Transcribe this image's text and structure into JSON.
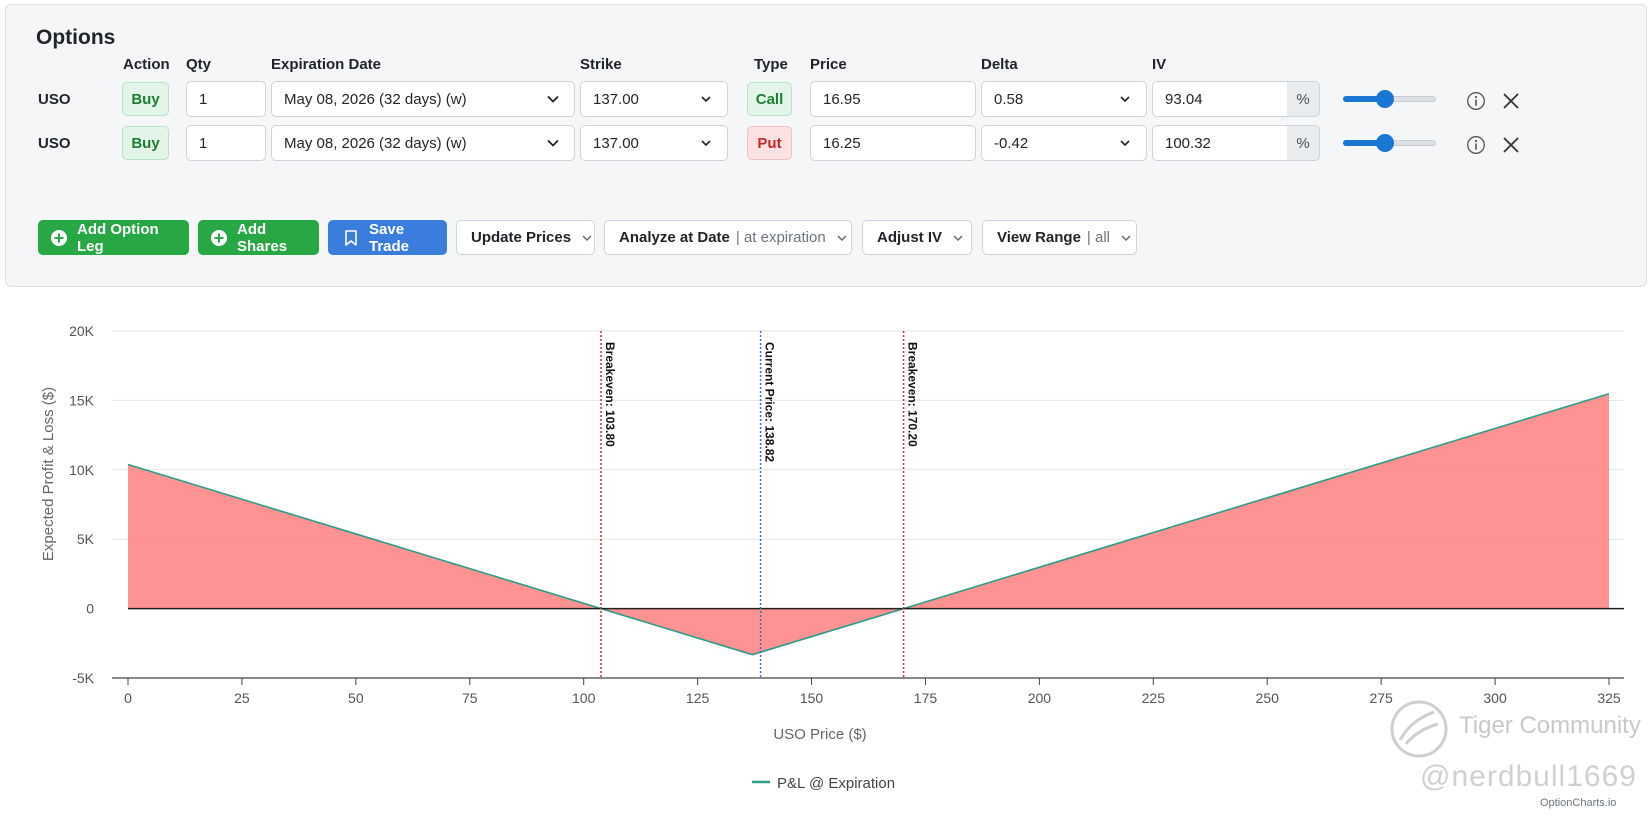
{
  "title": "Options",
  "headers": {
    "action": "Action",
    "qty": "Qty",
    "expiration": "Expiration Date",
    "strike": "Strike",
    "type": "Type",
    "price": "Price",
    "delta": "Delta",
    "iv": "IV"
  },
  "legs": [
    {
      "symbol": "USO",
      "action": "Buy",
      "qty": "1",
      "expiration": "May 08, 2026 (32 days) (w)",
      "strike": "137.00",
      "type": "Call",
      "price": "16.95",
      "delta": "0.58",
      "iv": "93.04",
      "iv_unit": "%",
      "slider_level": 0.45
    },
    {
      "symbol": "USO",
      "action": "Buy",
      "qty": "1",
      "expiration": "May 08, 2026 (32 days) (w)",
      "strike": "137.00",
      "type": "Put",
      "price": "16.25",
      "delta": "-0.42",
      "iv": "100.32",
      "iv_unit": "%",
      "slider_level": 0.45
    }
  ],
  "buttons": {
    "add_leg": "Add Option Leg",
    "add_shares": "Add Shares",
    "save_trade": "Save Trade",
    "update_prices": "Update Prices",
    "analyze_date": "Analyze at Date",
    "analyze_date_value": "| at expiration",
    "adjust_iv": "Adjust IV",
    "view_range": "View Range",
    "view_range_value": "| all"
  },
  "colors": {
    "profit": "#3fb5a0",
    "loss": "#ff8080",
    "breakeven": "#d32f2f",
    "current": "#3a6fc4",
    "green_btn": "#28a745",
    "blue_btn": "#3b7ddd"
  },
  "chart_data": {
    "type": "area",
    "xlabel": "USO Price ($)",
    "ylabel": "Expected Profit & Loss ($)",
    "xlim": [
      0,
      325
    ],
    "ylim": [
      -5000,
      20000
    ],
    "x_ticks": [
      0,
      25,
      50,
      75,
      100,
      125,
      150,
      175,
      200,
      225,
      250,
      275,
      300,
      325
    ],
    "y_ticks": [
      -5000,
      0,
      5000,
      10000,
      15000,
      20000
    ],
    "y_tick_labels": [
      "-5K",
      "0",
      "5K",
      "10K",
      "15K",
      "20K"
    ],
    "series": [
      {
        "name": "P&L @ Expiration",
        "x": [
          0,
          103.8,
          137,
          170.2,
          325
        ],
        "y": [
          10380,
          0,
          -3320,
          0,
          15480
        ]
      }
    ],
    "annotations": [
      {
        "x": 103.8,
        "label": "Breakeven: 103.80",
        "style": "breakeven"
      },
      {
        "x": 138.82,
        "label": "Current Price: 138.82",
        "style": "current"
      },
      {
        "x": 170.2,
        "label": "Breakeven: 170.20",
        "style": "breakeven"
      }
    ],
    "grid": true,
    "legend": "bottom-center"
  },
  "watermark": {
    "brand": "Tiger Community",
    "handle": "@nerdbull1669",
    "site": "OptionCharts.io"
  }
}
